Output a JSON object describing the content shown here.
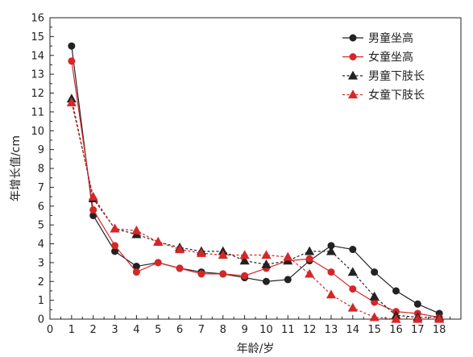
{
  "chart_data": {
    "type": "line",
    "xlabel": "年龄/岁",
    "ylabel": "年增长值/cm",
    "xlim": [
      0,
      19
    ],
    "ylim": [
      0,
      16
    ],
    "xticks": [
      0,
      1,
      2,
      3,
      4,
      5,
      6,
      7,
      8,
      9,
      10,
      11,
      12,
      13,
      14,
      15,
      16,
      17,
      18
    ],
    "yticks": [
      0,
      1,
      2,
      3,
      4,
      5,
      6,
      7,
      8,
      9,
      10,
      11,
      12,
      13,
      14,
      15,
      16
    ],
    "legend_position": "top-right",
    "x": [
      1,
      2,
      3,
      4,
      5,
      6,
      7,
      8,
      9,
      10,
      11,
      12,
      13,
      14,
      15,
      16,
      17,
      18
    ],
    "series": [
      {
        "name": "男童坐高",
        "color": "#222222",
        "marker": "circle",
        "line": "solid",
        "values": [
          14.5,
          5.5,
          3.6,
          2.8,
          3.0,
          2.7,
          2.5,
          2.4,
          2.2,
          2.0,
          2.1,
          3.1,
          3.9,
          3.7,
          2.5,
          1.5,
          0.8,
          0.3
        ]
      },
      {
        "name": "女童坐高",
        "color": "#d62728",
        "marker": "circle",
        "line": "solid",
        "values": [
          13.7,
          5.8,
          3.9,
          2.5,
          3.0,
          2.7,
          2.4,
          2.4,
          2.3,
          2.7,
          3.1,
          3.2,
          2.5,
          1.6,
          0.9,
          0.4,
          0.3,
          0.1
        ]
      },
      {
        "name": "男童下肢长",
        "color": "#222222",
        "marker": "triangle",
        "line": "dashed",
        "values": [
          11.7,
          6.4,
          4.8,
          4.5,
          4.1,
          3.8,
          3.6,
          3.6,
          3.1,
          2.9,
          3.1,
          3.6,
          3.6,
          2.5,
          1.2,
          0.2,
          0.1,
          0.1
        ]
      },
      {
        "name": "女童下肢长",
        "color": "#d62728",
        "marker": "triangle",
        "line": "dashed",
        "values": [
          11.5,
          6.5,
          4.8,
          4.7,
          4.1,
          3.7,
          3.5,
          3.4,
          3.4,
          3.4,
          3.3,
          2.4,
          1.3,
          0.6,
          0.1,
          0.0,
          0.0,
          0.0
        ]
      }
    ]
  }
}
